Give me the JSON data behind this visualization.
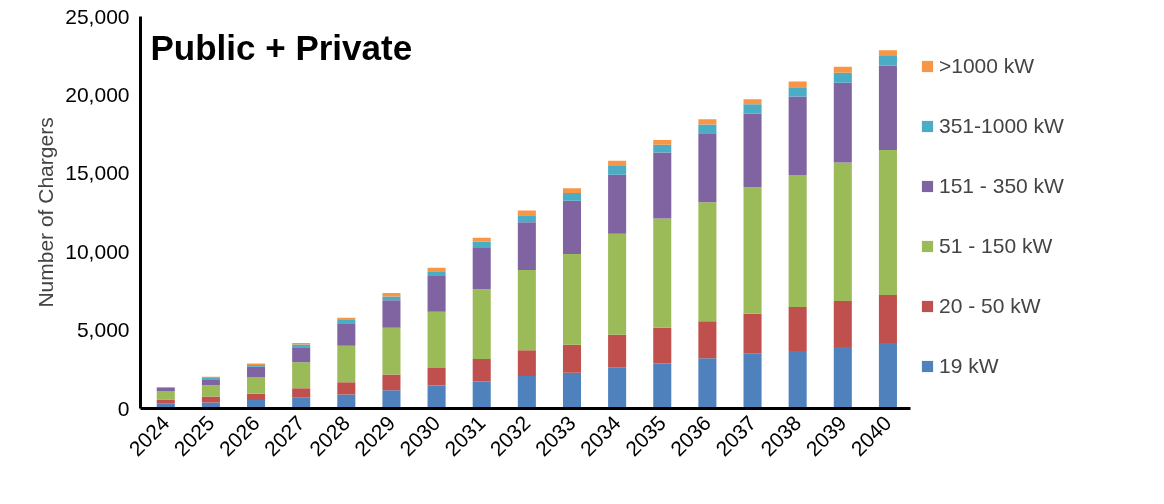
{
  "chart_data": {
    "type": "bar",
    "stacked": true,
    "title": "Public + Private",
    "ylabel": "Number of Chargers",
    "categories": [
      "2024",
      "2025",
      "2026",
      "2027",
      "2028",
      "2029",
      "2030",
      "2031",
      "2032",
      "2033",
      "2034",
      "2035",
      "2036",
      "2037",
      "2038",
      "2039",
      "2040"
    ],
    "series": [
      {
        "name": "19 kW",
        "color": "#4f81bd",
        "values": [
          330,
          390,
          540,
          720,
          900,
          1170,
          1460,
          1720,
          2070,
          2280,
          2630,
          2870,
          3200,
          3530,
          3670,
          3920,
          4170
        ]
      },
      {
        "name": "20 - 50 kW",
        "color": "#c0504d",
        "values": [
          240,
          370,
          400,
          570,
          780,
          1000,
          1120,
          1440,
          1640,
          1780,
          2070,
          2280,
          2360,
          2520,
          2810,
          2930,
          3070
        ]
      },
      {
        "name": "51 - 150 kW",
        "color": "#9bbb59",
        "values": [
          540,
          720,
          1070,
          1660,
          2320,
          2980,
          3590,
          4450,
          5130,
          5790,
          6440,
          6970,
          7590,
          8060,
          8410,
          8840,
          9250
        ]
      },
      {
        "name": "151 - 350 kW",
        "color": "#8064a2",
        "values": [
          200,
          380,
          650,
          950,
          1430,
          1760,
          2280,
          2620,
          3040,
          3400,
          3770,
          4210,
          4410,
          4680,
          5010,
          5090,
          5370
        ]
      },
      {
        "name": "351-1000 kW",
        "color": "#4bacc6",
        "values": [
          40,
          90,
          110,
          180,
          210,
          230,
          300,
          420,
          450,
          490,
          560,
          490,
          550,
          610,
          590,
          640,
          620
        ]
      },
      {
        "name": ">1000 kW",
        "color": "#f79646",
        "values": [
          20,
          80,
          100,
          100,
          140,
          230,
          220,
          240,
          290,
          310,
          330,
          310,
          330,
          330,
          370,
          380,
          370
        ]
      }
    ],
    "ylim": [
      0,
      25000
    ],
    "yticks": [
      {
        "value": 0,
        "label": "0"
      },
      {
        "value": 5000,
        "label": "5,000"
      },
      {
        "value": 10000,
        "label": "10,000"
      },
      {
        "value": 15000,
        "label": "15,000"
      },
      {
        "value": 20000,
        "label": "20,000"
      },
      {
        "value": 25000,
        "label": "25,000"
      }
    ],
    "grid": false,
    "legend": "right"
  }
}
